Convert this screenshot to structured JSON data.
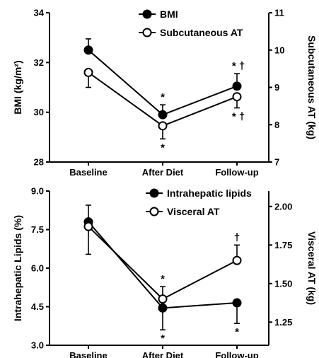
{
  "chart_data": [
    {
      "type": "line",
      "categories": [
        "Baseline",
        "After Diet",
        "Follow-up"
      ],
      "ylabel_left": "BMI (kg/m²)",
      "ylabel_right": "Subcutaneous AT (kg)",
      "ylim_left": [
        28,
        34
      ],
      "ylim_right": [
        7,
        11
      ],
      "yticks_left": [
        "28",
        "30",
        "32",
        "34"
      ],
      "yticks_right": [
        "7",
        "8",
        "9",
        "10",
        "11"
      ],
      "legend_position": "top-center",
      "series": [
        {
          "name": "BMI",
          "axis": "left",
          "marker": "filled",
          "values": [
            32.5,
            29.9,
            31.05
          ],
          "err_up": [
            0.45,
            0.4,
            0.5
          ],
          "err_down": [
            0,
            0,
            0
          ]
        },
        {
          "name": "Subcutaneous AT",
          "axis": "right",
          "marker": "open",
          "values": [
            9.4,
            7.97,
            8.75
          ],
          "err_up": [
            0,
            0,
            0
          ],
          "err_down": [
            0.4,
            0.35,
            0.3
          ]
        }
      ],
      "annotations": [
        {
          "text": "*",
          "category": 1,
          "series": 0,
          "position": "above"
        },
        {
          "text": "*",
          "category": 1,
          "series": 1,
          "position": "below"
        },
        {
          "text": "* †",
          "category": 2,
          "series": 0,
          "position": "above"
        },
        {
          "text": "* †",
          "category": 2,
          "series": 1,
          "position": "below"
        }
      ]
    },
    {
      "type": "line",
      "categories": [
        "Baseline",
        "After Diet",
        "Follow-up"
      ],
      "ylabel_left": "Intrahepatic Lipids (%)",
      "ylabel_right": "Visceral AT (kg)",
      "ylim_left": [
        3.0,
        9.0
      ],
      "ylim_right": [
        1.1,
        2.1
      ],
      "yticks_left": [
        "3.0",
        "4.5",
        "6.0",
        "7.5",
        "9.0"
      ],
      "yticks_right": [
        "1.25",
        "1.50",
        "1.75",
        "2.00"
      ],
      "legend_position": "top-center",
      "series": [
        {
          "name": "Intrahepatic lipids",
          "axis": "left",
          "marker": "filled",
          "values": [
            7.8,
            4.45,
            4.65
          ],
          "err_up": [
            0.65,
            0,
            0
          ],
          "err_down": [
            0,
            0.85,
            0.8
          ]
        },
        {
          "name": "Visceral AT",
          "axis": "right",
          "marker": "open",
          "values": [
            1.87,
            1.4,
            1.65
          ],
          "err_up": [
            0,
            0.08,
            0.1
          ],
          "err_down": [
            0.18,
            0,
            0
          ]
        }
      ],
      "annotations": [
        {
          "text": "*",
          "category": 1,
          "series": 1,
          "position": "above"
        },
        {
          "text": "*",
          "category": 1,
          "series": 0,
          "position": "below"
        },
        {
          "text": "†",
          "category": 2,
          "series": 1,
          "position": "above"
        },
        {
          "text": "*",
          "category": 2,
          "series": 0,
          "position": "below"
        }
      ]
    }
  ]
}
